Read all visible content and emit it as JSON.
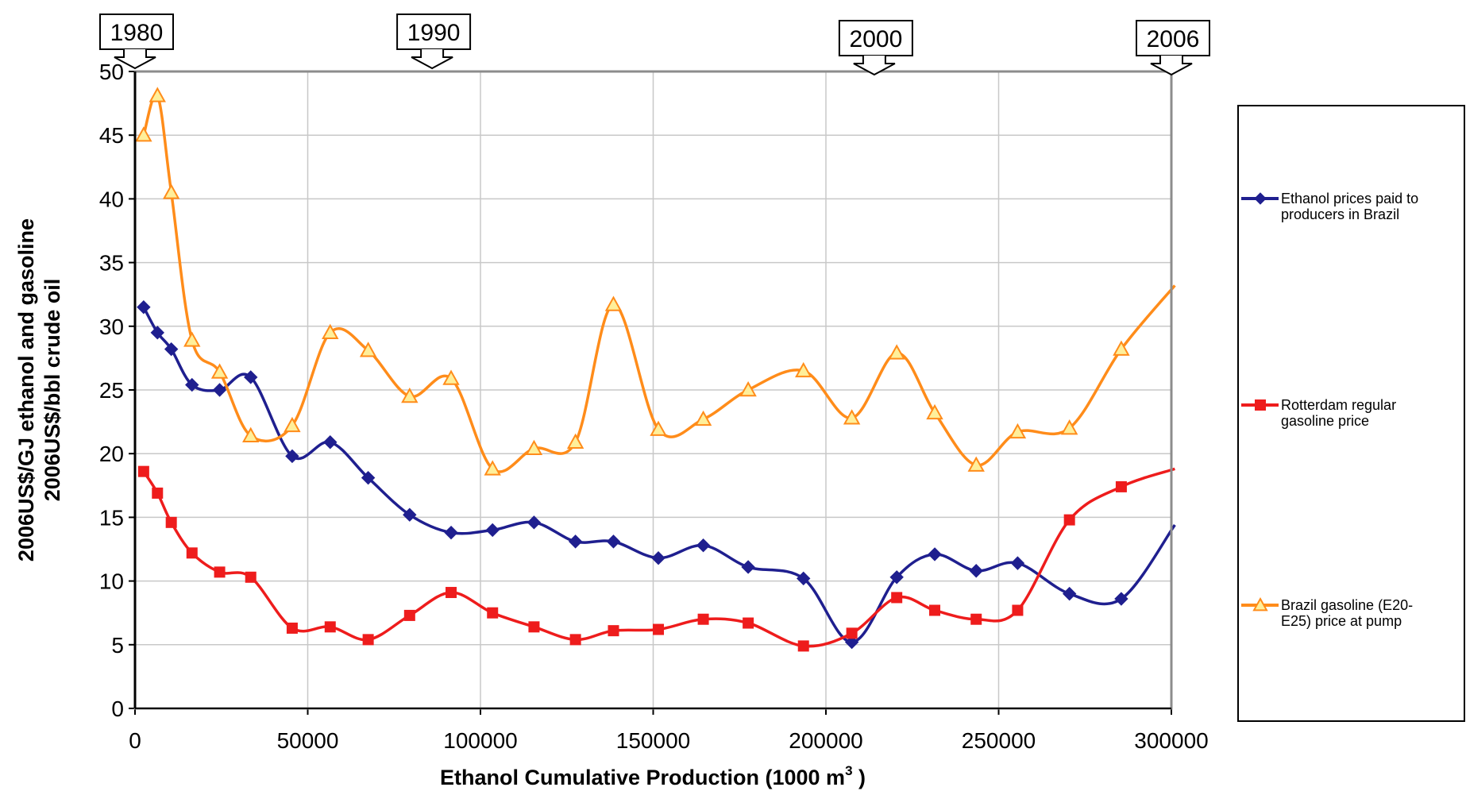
{
  "chart_data": {
    "type": "line",
    "title": "",
    "xlabel": "Ethanol Cumulative Production (1000 m",
    "xlabel_superscript": "3",
    "xlabel_suffix": " )",
    "ylabel": [
      "2006US$/GJ ethanol and gasoline",
      "2006US$/bbl crude oil"
    ],
    "xlim": [
      0,
      300000
    ],
    "ylim": [
      0,
      50
    ],
    "x_ticks": [
      "0",
      "50000",
      "100000",
      "150000",
      "200000",
      "250000",
      "300000"
    ],
    "y_ticks": [
      "0",
      "5",
      "10",
      "15",
      "20",
      "25",
      "30",
      "35",
      "40",
      "45",
      "50"
    ],
    "grid": true,
    "legend_position": "right",
    "year_callouts": [
      {
        "label": "1980",
        "x": 0
      },
      {
        "label": "1990",
        "x": 86000
      },
      {
        "label": "2000",
        "x": 214000
      },
      {
        "label": "2006",
        "x": 300000
      }
    ],
    "series": [
      {
        "name": "Ethanol prices paid to producers in Brazil",
        "legend_lines": [
          "Ethanol prices paid to",
          "producers in Brazil"
        ],
        "color": "#1f1f8f",
        "marker": "diamond",
        "x": [
          2500,
          6500,
          10500,
          16500,
          24500,
          33500,
          45500,
          56500,
          67500,
          79500,
          91500,
          103500,
          115500,
          127500,
          138500,
          151500,
          164500,
          177500,
          193500,
          207500,
          220500,
          231500,
          243500,
          255500,
          270500,
          285500,
          301000
        ],
        "y": [
          31.5,
          29.5,
          28.2,
          25.4,
          25.0,
          26.0,
          19.8,
          20.9,
          18.1,
          15.2,
          13.8,
          14.0,
          14.6,
          13.1,
          13.1,
          11.8,
          12.8,
          11.1,
          10.2,
          5.2,
          10.3,
          12.1,
          10.8,
          11.4,
          9.0,
          8.6,
          14.4
        ],
        "marker_count": 26
      },
      {
        "name": "Rotterdam regular gasoline price",
        "legend_lines": [
          "Rotterdam regular",
          "gasoline price"
        ],
        "color": "#ee1c1c",
        "marker": "square",
        "x": [
          2500,
          6500,
          10500,
          16500,
          24500,
          33500,
          45500,
          56500,
          67500,
          79500,
          91500,
          103500,
          115500,
          127500,
          138500,
          151500,
          164500,
          177500,
          193500,
          207500,
          220500,
          231500,
          243500,
          255500,
          270500,
          285500,
          301000
        ],
        "y": [
          18.6,
          16.9,
          14.6,
          12.2,
          10.7,
          10.3,
          6.3,
          6.4,
          5.4,
          7.3,
          9.1,
          7.5,
          6.4,
          5.4,
          6.1,
          6.2,
          7.0,
          6.7,
          4.9,
          5.9,
          8.7,
          7.7,
          7.0,
          7.7,
          14.8,
          17.4,
          18.8
        ],
        "marker_count": 26
      },
      {
        "name": "Brazil gasoline (E20-E25) price at pump",
        "legend_lines": [
          "Brazil gasoline (E20-",
          "E25) price at pump"
        ],
        "color": "#ff8c1a",
        "marker": "triangle",
        "x": [
          2500,
          6500,
          10500,
          16500,
          24500,
          33500,
          45500,
          56500,
          67500,
          79500,
          91500,
          103500,
          115500,
          127500,
          138500,
          151500,
          164500,
          177500,
          193500,
          207500,
          220500,
          231500,
          243500,
          255500,
          270500,
          285500,
          301000
        ],
        "y": [
          45.0,
          48.1,
          40.5,
          28.9,
          26.4,
          21.4,
          22.2,
          29.5,
          28.1,
          24.5,
          25.9,
          18.8,
          20.4,
          20.9,
          31.7,
          21.9,
          22.7,
          25.0,
          26.5,
          22.8,
          27.9,
          23.2,
          19.1,
          21.7,
          22.0,
          28.2,
          33.2
        ],
        "marker_count": 26
      }
    ]
  }
}
